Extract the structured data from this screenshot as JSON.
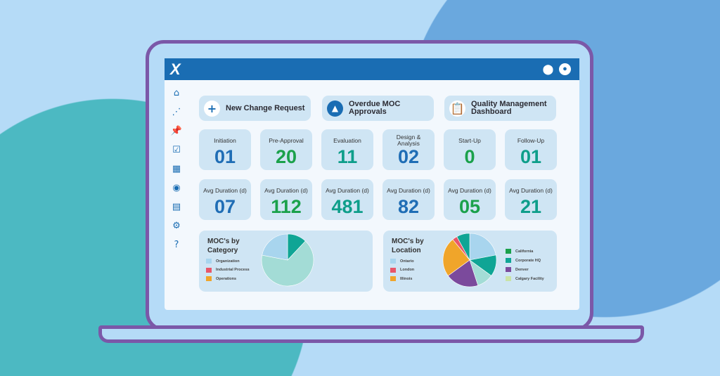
{
  "header": {
    "logo": "X",
    "icons": [
      "location-pin-icon",
      "user-account-icon"
    ]
  },
  "sidebar": {
    "items": [
      {
        "icon": "home-icon",
        "glyph": "⌂"
      },
      {
        "icon": "share-nodes-icon",
        "glyph": "⋰"
      },
      {
        "icon": "pin-icon",
        "glyph": "📌"
      },
      {
        "icon": "checkbox-icon",
        "glyph": "☑"
      },
      {
        "icon": "dashboard-grid-icon",
        "glyph": "▦"
      },
      {
        "icon": "eye-icon",
        "glyph": "◉"
      },
      {
        "icon": "calendar-icon",
        "glyph": "▤"
      },
      {
        "icon": "settings-gear-icon",
        "glyph": "⚙"
      },
      {
        "icon": "help-icon",
        "glyph": "?"
      }
    ]
  },
  "actions": [
    {
      "label": "New Change Request",
      "icon": "plus-icon",
      "glyph": "+"
    },
    {
      "label": "Overdue MOC Approvals",
      "icon": "warning-icon",
      "glyph": "▲"
    },
    {
      "label": "Quality Management Dashboard",
      "icon": "clipboard-icon",
      "glyph": "📋"
    }
  ],
  "colors": {
    "blue": "#1f6db5",
    "green": "#1ba14b",
    "teal": "#0e9e8a"
  },
  "stages": [
    {
      "label": "Initiation",
      "value": "01",
      "color": "#1f6db5"
    },
    {
      "label": "Pre-Approval",
      "value": "20",
      "color": "#1ba14b"
    },
    {
      "label": "Evaluation",
      "value": "11",
      "color": "#0e9e8a"
    },
    {
      "label": "Design & Analysis",
      "value": "02",
      "color": "#1f6db5"
    },
    {
      "label": "Start-Up",
      "value": "0",
      "color": "#1ba14b"
    },
    {
      "label": "Follow-Up",
      "value": "01",
      "color": "#0e9e8a"
    }
  ],
  "durations": [
    {
      "label": "Avg Duration (d)",
      "value": "07",
      "color": "#1f6db5"
    },
    {
      "label": "Avg Duration (d)",
      "value": "112",
      "color": "#1ba14b"
    },
    {
      "label": "Avg Duration (d)",
      "value": "481",
      "color": "#0e9e8a"
    },
    {
      "label": "Avg Duration (d)",
      "value": "82",
      "color": "#1f6db5"
    },
    {
      "label": "Avg Duration (d)",
      "value": "05",
      "color": "#1ba14b"
    },
    {
      "label": "Avg Duration (d)",
      "value": "21",
      "color": "#0e9e8a"
    }
  ],
  "chart_data": [
    {
      "type": "pie",
      "title": "MOC's by Category",
      "legend": [
        {
          "name": "Organization",
          "color": "#a8d5ee"
        },
        {
          "name": "Industrial Process",
          "color": "#e8576a"
        },
        {
          "name": "Operations",
          "color": "#f0a52a"
        }
      ],
      "slices": [
        {
          "value": 12,
          "color": "#0fa595"
        },
        {
          "value": 66,
          "color": "#a3dcd6"
        },
        {
          "value": 22,
          "color": "#a8d5ee"
        }
      ]
    },
    {
      "type": "pie",
      "title": "MOC's by Location",
      "legend": [
        {
          "name": "Ontario",
          "color": "#a8d5ee"
        },
        {
          "name": "London",
          "color": "#e8576a"
        },
        {
          "name": "Illinois",
          "color": "#f0a52a"
        },
        {
          "name": "California",
          "color": "#1ba14b"
        },
        {
          "name": "Corporate HQ",
          "color": "#0fa595"
        },
        {
          "name": "Denver",
          "color": "#7b4a9c"
        },
        {
          "name": "Calgary Facility",
          "color": "#c9e3a6"
        }
      ],
      "slices": [
        {
          "value": 22,
          "color": "#a8d5ee"
        },
        {
          "value": 13,
          "color": "#0fa595"
        },
        {
          "value": 10,
          "color": "#a3dcd6"
        },
        {
          "value": 20,
          "color": "#7b4a9c"
        },
        {
          "value": 24,
          "color": "#f0a52a"
        },
        {
          "value": 3,
          "color": "#e8576a"
        },
        {
          "value": 8,
          "color": "#0fa595"
        }
      ]
    }
  ]
}
